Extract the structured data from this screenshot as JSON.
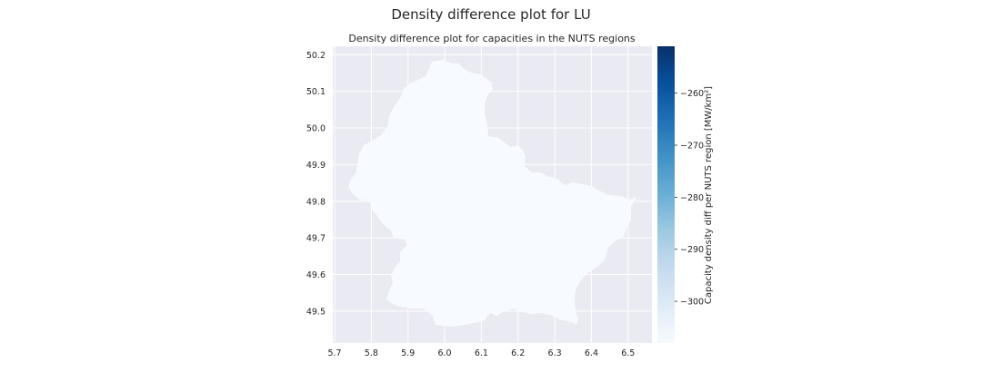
{
  "figure": {
    "suptitle": "Density difference plot for LU"
  },
  "chart_data": {
    "type": "choropleth map",
    "title": "Density difference plot for capacities in the NUTS regions",
    "xlim": [
      5.695,
      6.565
    ],
    "ylim": [
      49.413,
      50.223
    ],
    "xticks": [
      "5.7",
      "5.8",
      "5.9",
      "6.0",
      "6.1",
      "6.2",
      "6.3",
      "6.4",
      "6.5"
    ],
    "yticks": [
      "49.5",
      "49.6",
      "49.7",
      "49.8",
      "49.9",
      "50.0",
      "50.1",
      "50.2"
    ],
    "grid": true,
    "background": "#eaeaf2",
    "regions": [
      {
        "name": "LU",
        "value": -308,
        "fill": "#f7fbff"
      }
    ],
    "colorbar": {
      "label": "Capacity density diff per NUTS region [MW/km²]",
      "colormap": "Blues",
      "vmin": -308,
      "vmax": -251,
      "ticks": [
        "−300",
        "−290",
        "−280",
        "−270",
        "−260"
      ],
      "tick_values": [
        -300,
        -290,
        -280,
        -270,
        -260
      ],
      "colors": [
        "#f7fbff",
        "#deebf7",
        "#c6dbef",
        "#9ecae1",
        "#6baed6",
        "#4292c6",
        "#2171b5",
        "#08519c",
        "#08306b"
      ]
    }
  }
}
